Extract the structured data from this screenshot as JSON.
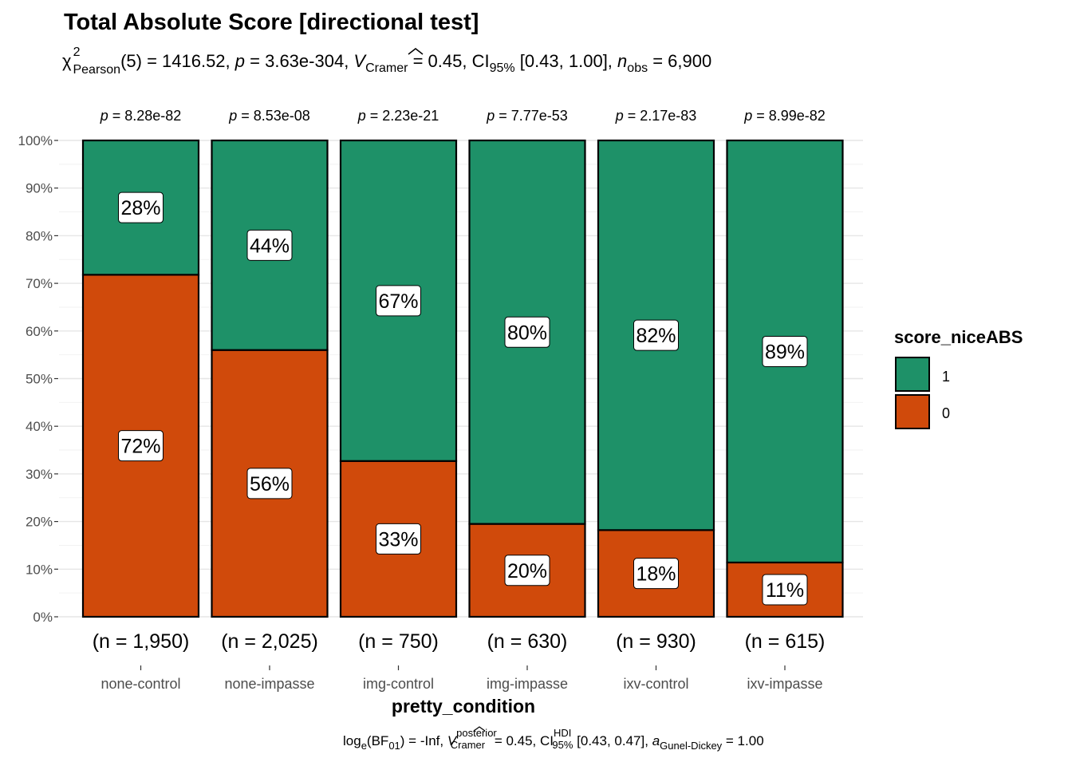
{
  "chart_data": {
    "type": "bar",
    "stacked": true,
    "title": "Total Absolute Score [directional test]",
    "subtitle": {
      "chi": "χ",
      "chi_sup": "2",
      "chi_sub": "Pearson",
      "df": "(5) = 1416.52, ",
      "p_var": "p",
      "p_val": " = 3.63e-304, ",
      "v_var": "V",
      "v_sub": "Cramer",
      "v_val": " = 0.45, CI",
      "ci_sub": "95%",
      "ci_val": " [0.43, 1.00], ",
      "n_var": "n",
      "n_sub": "obs",
      "n_val": " = 6,900"
    },
    "categories": [
      "none-control",
      "none-impasse",
      "img-control",
      "img-impasse",
      "ixv-control",
      "ixv-impasse"
    ],
    "counts": [
      "(n = 1,950)",
      "(n = 2,025)",
      "(n = 750)",
      "(n = 630)",
      "(n = 930)",
      "(n = 615)"
    ],
    "p_values": [
      "p = 8.28e-82",
      "p = 8.53e-08",
      "p = 2.23e-21",
      "p = 7.77e-53",
      "p = 2.17e-83",
      "p = 8.99e-82"
    ],
    "series": [
      {
        "name": "0",
        "color": "#D04A0B",
        "values": [
          71.8,
          56.0,
          32.7,
          19.5,
          18.2,
          11.4
        ],
        "labels": [
          "72%",
          "56%",
          "33%",
          "20%",
          "18%",
          "11%"
        ]
      },
      {
        "name": "1",
        "color": "#1E9168",
        "values": [
          28.2,
          44.0,
          67.3,
          80.5,
          81.8,
          88.6
        ],
        "labels": [
          "28%",
          "44%",
          "67%",
          "80%",
          "82%",
          "89%"
        ]
      }
    ],
    "yticks": [
      "0%",
      "10%",
      "20%",
      "30%",
      "40%",
      "50%",
      "60%",
      "70%",
      "80%",
      "90%",
      "100%"
    ],
    "ylim": [
      0,
      100
    ],
    "xlabel": "pretty_condition",
    "ylabel": "",
    "legend": {
      "title": "score_niceABS",
      "placement": "right",
      "entries": [
        {
          "label": "1",
          "color": "#1E9168"
        },
        {
          "label": "0",
          "color": "#D04A0B"
        }
      ]
    },
    "caption": {
      "log": "log",
      "log_sub": "e",
      "bf": "(BF",
      "bf_sub": "01",
      "bf_val": ") = -Inf, ",
      "v_var": "V",
      "v_sup": "posterior",
      "v_sub": "Cramer",
      "v_val": " = 0.45, CI",
      "ci_sup": "HDI",
      "ci_sub": "95%",
      "ci_val": " [0.43, 0.47], ",
      "a_var": "a",
      "a_sub": "Gunel-Dickey",
      "a_val": " = 1.00"
    },
    "grid": true
  }
}
